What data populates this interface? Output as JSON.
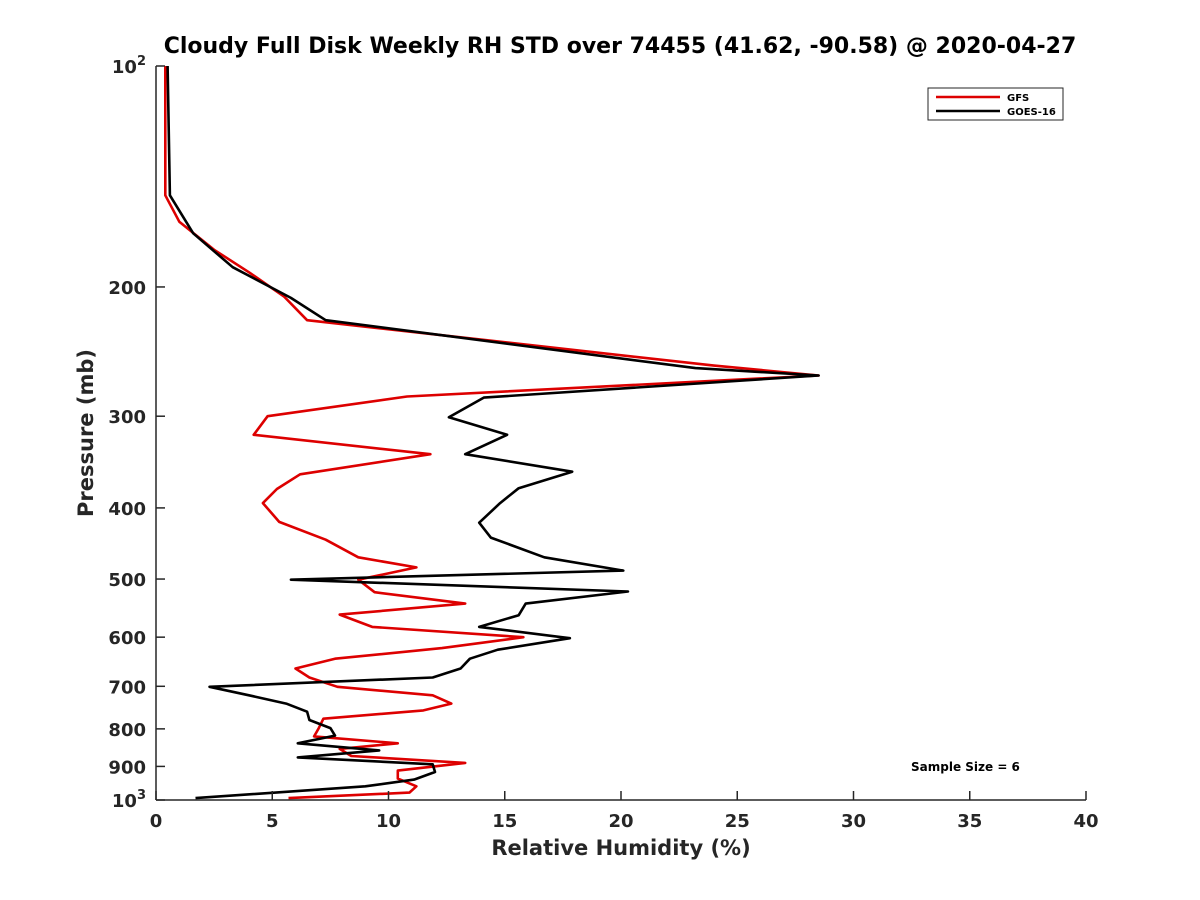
{
  "chart_data": {
    "type": "line",
    "title": "Cloudy Full Disk Weekly RH STD over 74455 (41.62, -90.58) @ 2020-04-27",
    "xlabel": "Relative Humidity (%)",
    "ylabel": "Pressure (mb)",
    "xlim": [
      0,
      40
    ],
    "ylim": [
      100,
      1000
    ],
    "y_scale": "log",
    "y_reversed": true,
    "x_ticks": [
      0,
      5,
      10,
      15,
      20,
      25,
      30,
      35,
      40
    ],
    "y_ticks": [
      {
        "value": 100,
        "base": "10",
        "exp": "2"
      },
      {
        "value": 200,
        "label": "200"
      },
      {
        "value": 300,
        "label": "300"
      },
      {
        "value": 400,
        "label": "400"
      },
      {
        "value": 500,
        "label": "500"
      },
      {
        "value": 600,
        "label": "600"
      },
      {
        "value": 700,
        "label": "700"
      },
      {
        "value": 800,
        "label": "800"
      },
      {
        "value": 900,
        "label": "900"
      },
      {
        "value": 1000,
        "base": "10",
        "exp": "3"
      }
    ],
    "grid": false,
    "legend_position": "top-right",
    "annotation": "Sample Size = 6",
    "series": [
      {
        "name": "GFS",
        "color": "#dd0000",
        "points": [
          [
            0.4,
            100
          ],
          [
            0.4,
            150
          ],
          [
            1.0,
            163
          ],
          [
            2.5,
            178
          ],
          [
            4.0,
            191
          ],
          [
            5.5,
            206
          ],
          [
            6.5,
            222
          ],
          [
            24.0,
            256
          ],
          [
            28.5,
            264
          ],
          [
            10.8,
            282
          ],
          [
            4.8,
            300
          ],
          [
            4.2,
            318
          ],
          [
            11.8,
            338
          ],
          [
            6.2,
            360
          ],
          [
            5.2,
            377
          ],
          [
            4.6,
            394
          ],
          [
            5.3,
            418
          ],
          [
            7.3,
            442
          ],
          [
            8.7,
            467
          ],
          [
            11.2,
            482
          ],
          [
            8.7,
            501
          ],
          [
            9.4,
            521
          ],
          [
            13.3,
            540
          ],
          [
            7.9,
            559
          ],
          [
            9.3,
            581
          ],
          [
            15.8,
            600
          ],
          [
            12.3,
            621
          ],
          [
            7.7,
            642
          ],
          [
            6.0,
            662
          ],
          [
            6.6,
            681
          ],
          [
            7.8,
            701
          ],
          [
            11.9,
            720
          ],
          [
            12.7,
            739
          ],
          [
            11.5,
            755
          ],
          [
            7.2,
            775
          ],
          [
            7.0,
            798
          ],
          [
            6.8,
            819
          ],
          [
            10.4,
            837
          ],
          [
            7.9,
            852
          ],
          [
            8.4,
            871
          ],
          [
            13.3,
            890
          ],
          [
            10.4,
            912
          ],
          [
            10.4,
            935
          ],
          [
            11.2,
            958
          ],
          [
            10.9,
            977
          ],
          [
            5.7,
            994
          ]
        ]
      },
      {
        "name": "GOES-16",
        "color": "#000000",
        "points": [
          [
            0.5,
            100
          ],
          [
            0.6,
            150
          ],
          [
            1.6,
            169
          ],
          [
            3.3,
            188
          ],
          [
            5.8,
            207
          ],
          [
            7.3,
            222
          ],
          [
            23.2,
            258
          ],
          [
            28.5,
            264
          ],
          [
            14.1,
            283
          ],
          [
            12.6,
            301
          ],
          [
            15.1,
            318
          ],
          [
            13.3,
            338
          ],
          [
            17.9,
            357
          ],
          [
            15.6,
            376
          ],
          [
            14.8,
            394
          ],
          [
            13.9,
            419
          ],
          [
            14.4,
            439
          ],
          [
            16.7,
            467
          ],
          [
            20.1,
            487
          ],
          [
            5.8,
            501
          ],
          [
            20.3,
            520
          ],
          [
            15.9,
            540
          ],
          [
            15.6,
            560
          ],
          [
            13.9,
            581
          ],
          [
            17.8,
            602
          ],
          [
            14.7,
            624
          ],
          [
            13.5,
            642
          ],
          [
            13.1,
            662
          ],
          [
            11.9,
            681
          ],
          [
            2.3,
            701
          ],
          [
            4.0,
            720
          ],
          [
            5.6,
            739
          ],
          [
            6.5,
            758
          ],
          [
            6.6,
            778
          ],
          [
            7.5,
            798
          ],
          [
            7.7,
            817
          ],
          [
            6.1,
            837
          ],
          [
            9.6,
            856
          ],
          [
            6.1,
            875
          ],
          [
            11.9,
            894
          ],
          [
            12.0,
            916
          ],
          [
            11.1,
            938
          ],
          [
            9.0,
            958
          ],
          [
            1.7,
            994
          ]
        ]
      }
    ]
  }
}
